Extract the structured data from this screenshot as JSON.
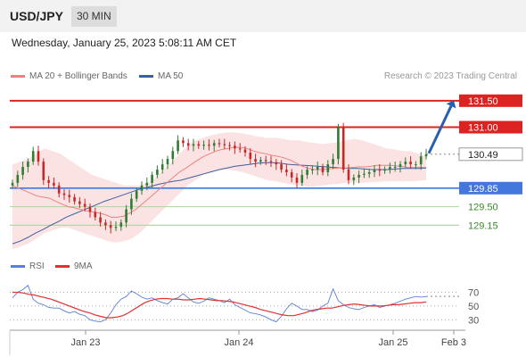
{
  "header": {
    "pair": "USD/JPY",
    "timeframe": "30 MIN"
  },
  "timestamp": "Wednesday, January 25, 2023 5:08:11 AM CET",
  "legend": {
    "main": [
      {
        "label": "MA 20 + Bollinger Bands",
        "color": "#f08080"
      },
      {
        "label": "MA 50",
        "color": "#3a5f9e"
      }
    ],
    "rsi": [
      {
        "label": "RSI",
        "color": "#5b7fd6"
      },
      {
        "label": "9MA",
        "color": "#e03030"
      }
    ]
  },
  "credit": "Research © 2023 Trading Central",
  "colors": {
    "resistance": "#dd2222",
    "support": "#4477dd",
    "target": "#77aa66",
    "arrow": "#2a5fb0",
    "bull": "#2e7d32",
    "bear": "#c62828"
  },
  "chart_data": [
    {
      "type": "candlestick",
      "ylim": [
        128.6,
        131.8
      ],
      "x_ticks": [
        "Jan 23",
        "Jan 24",
        "Jan 25",
        "Feb 3"
      ],
      "levels": [
        {
          "value": 131.5,
          "label": "131.50",
          "kind": "resistance"
        },
        {
          "value": 131.0,
          "label": "131.00",
          "kind": "resistance"
        },
        {
          "value": 130.49,
          "label": "130.49",
          "kind": "last"
        },
        {
          "value": 129.85,
          "label": "129.85",
          "kind": "support"
        },
        {
          "value": 129.5,
          "label": "129.50",
          "kind": "target"
        },
        {
          "value": 129.15,
          "label": "129.15",
          "kind": "target"
        }
      ],
      "close": [
        129.95,
        130.1,
        130.25,
        130.35,
        130.55,
        130.35,
        130.0,
        129.95,
        129.9,
        129.75,
        129.72,
        129.68,
        129.6,
        129.55,
        129.5,
        129.4,
        129.3,
        129.2,
        129.15,
        129.1,
        129.12,
        129.2,
        129.45,
        129.65,
        129.8,
        129.9,
        129.95,
        130.1,
        130.2,
        130.3,
        130.4,
        130.55,
        130.75,
        130.7,
        130.65,
        130.68,
        130.65,
        130.67,
        130.65,
        130.7,
        130.68,
        130.66,
        130.65,
        130.6,
        130.58,
        130.52,
        130.4,
        130.35,
        130.38,
        130.36,
        130.34,
        130.3,
        130.2,
        130.15,
        130.05,
        129.95,
        130.1,
        130.2,
        130.2,
        130.25,
        130.15,
        130.3,
        130.4,
        131.0,
        130.2,
        130.0,
        130.05,
        130.1,
        130.12,
        130.15,
        130.2,
        130.18,
        130.2,
        130.25,
        130.25,
        130.3,
        130.35,
        130.3,
        130.3,
        130.45,
        130.49
      ],
      "ma20": [
        129.9,
        129.85,
        129.8,
        129.75,
        129.7,
        129.68,
        129.66,
        129.6,
        129.55,
        129.5,
        129.48,
        129.45,
        129.42,
        129.4,
        129.38,
        129.35,
        129.3,
        129.3,
        129.32,
        129.38,
        129.45,
        129.55,
        129.65,
        129.75,
        129.85,
        129.95,
        130.05,
        130.15,
        130.22,
        130.3,
        130.38,
        130.45,
        130.5,
        130.55,
        130.58,
        130.6,
        130.62,
        130.62,
        130.6,
        130.55,
        130.52,
        130.5,
        130.47,
        130.45,
        130.42,
        130.38,
        130.32,
        130.26,
        130.22,
        130.2,
        130.2,
        130.21,
        130.22,
        130.23,
        130.23,
        130.24,
        130.25,
        130.25,
        130.26,
        130.28,
        130.28,
        130.28,
        130.27,
        130.26,
        130.24,
        130.24,
        130.24,
        130.24
      ],
      "ma50": [
        128.8,
        128.85,
        128.92,
        129.0,
        129.07,
        129.15,
        129.22,
        129.3,
        129.36,
        129.42,
        129.48,
        129.54,
        129.6,
        129.65,
        129.7,
        129.75,
        129.8,
        129.85,
        129.88,
        129.92,
        129.95,
        129.98,
        130.0,
        130.04,
        130.08,
        130.12,
        130.16,
        130.2,
        130.23,
        130.26,
        130.28,
        130.3,
        130.32,
        130.33,
        130.33,
        130.32,
        130.3,
        130.29,
        130.28,
        130.27,
        130.26,
        130.25,
        130.24,
        130.23,
        130.22,
        130.22,
        130.21,
        130.2,
        130.2,
        130.2,
        130.21,
        130.22,
        130.22,
        130.22,
        130.23
      ],
      "bb_upper": [
        130.3,
        130.35,
        130.4,
        130.5,
        130.6,
        130.55,
        130.5,
        130.4,
        130.3,
        130.2,
        130.1,
        130.05,
        130.0,
        129.95,
        129.9,
        129.9,
        129.9,
        129.95,
        130.05,
        130.2,
        130.35,
        130.5,
        130.65,
        130.75,
        130.8,
        130.85,
        130.88,
        130.9,
        130.9,
        130.88,
        130.85,
        130.82,
        130.8,
        130.8,
        130.78,
        130.75,
        130.75,
        130.72,
        130.7,
        130.68,
        130.7,
        130.72,
        130.75,
        130.78,
        130.75,
        130.7,
        130.65,
        130.6,
        130.58,
        130.55,
        130.55,
        130.5,
        130.45
      ],
      "bb_lower": [
        128.7,
        128.75,
        128.8,
        128.9,
        129.0,
        129.05,
        129.1,
        129.1,
        129.05,
        129.0,
        128.95,
        128.9,
        128.85,
        128.82,
        128.85,
        128.9,
        129.0,
        129.15,
        129.3,
        129.45,
        129.6,
        129.75,
        129.9,
        130.0,
        130.1,
        130.15,
        130.2,
        130.2,
        130.18,
        130.15,
        130.1,
        130.05,
        130.0,
        129.98,
        129.95,
        129.92,
        129.9,
        129.88,
        129.88,
        129.9,
        129.92,
        129.93,
        129.95,
        129.95,
        129.95,
        129.96,
        129.97,
        129.98,
        129.98,
        129.98,
        129.98,
        129.99,
        130.0
      ],
      "forecast": {
        "from": 130.49,
        "to": 131.5
      }
    },
    {
      "type": "line",
      "ylim": [
        20,
        85
      ],
      "y_ticks": [
        "70",
        "50",
        "30"
      ],
      "series": [
        {
          "name": "RSI",
          "values": [
            62,
            70,
            74,
            80,
            60,
            54,
            52,
            48,
            47,
            47,
            43,
            40,
            42,
            38,
            36,
            30,
            28,
            27,
            30,
            40,
            52,
            60,
            64,
            72,
            68,
            63,
            60,
            62,
            58,
            55,
            53,
            60,
            62,
            68,
            62,
            56,
            54,
            57,
            62,
            60,
            58,
            55,
            60,
            52,
            48,
            44,
            40,
            39,
            37,
            34,
            30,
            27,
            35,
            46,
            54,
            50,
            45,
            45,
            42,
            44,
            50,
            54,
            75,
            58,
            52,
            48,
            46,
            45,
            48,
            50,
            52,
            48,
            50,
            52,
            54,
            57,
            60,
            62,
            64,
            63,
            64
          ]
        },
        {
          "name": "9MA",
          "values": [
            70,
            70,
            69,
            67,
            66,
            64,
            62,
            60,
            57,
            54,
            51,
            48,
            45,
            42,
            40,
            37,
            35,
            33,
            33,
            34,
            36,
            40,
            45,
            50,
            55,
            58,
            60,
            61,
            61,
            60,
            60,
            59,
            59,
            60,
            61,
            60,
            59,
            58,
            58,
            57,
            56,
            54,
            52,
            50,
            48,
            45,
            43,
            41,
            39,
            37,
            36,
            36,
            38,
            40,
            43,
            45,
            46,
            47,
            47,
            49,
            51,
            52,
            53,
            52,
            51,
            50,
            50,
            50,
            51,
            52,
            52,
            53,
            54,
            55,
            55,
            56
          ]
        }
      ]
    }
  ]
}
